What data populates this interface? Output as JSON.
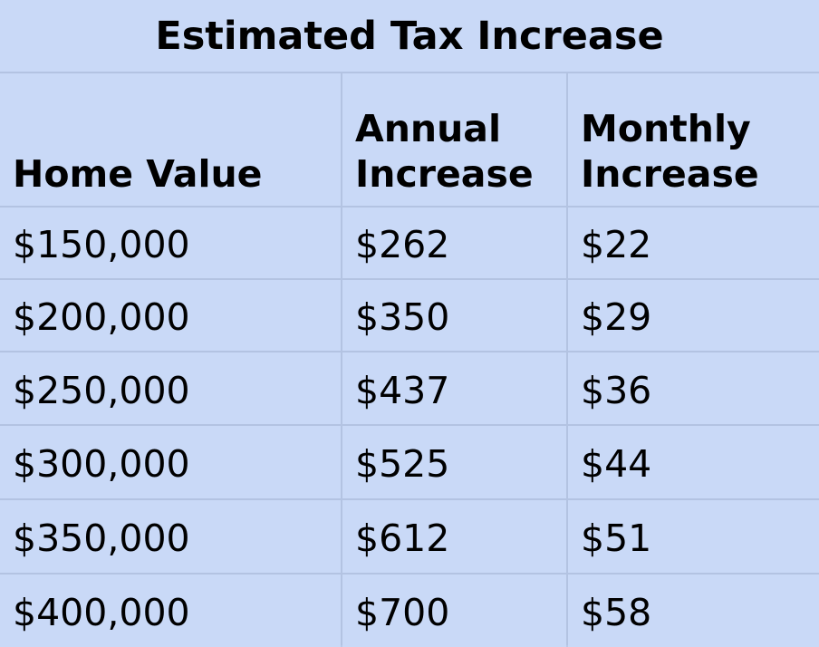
{
  "title": "Estimated Tax Increase",
  "headers": {
    "home_value": "Home Value",
    "annual": [
      "Annual",
      "Increase"
    ],
    "monthly": [
      "Monthly",
      "Increase"
    ]
  },
  "rows": [
    {
      "home_value": "$150,000",
      "annual": "$262",
      "monthly": "$22"
    },
    {
      "home_value": "$200,000",
      "annual": "$350",
      "monthly": "$29"
    },
    {
      "home_value": "$250,000",
      "annual": "$437",
      "monthly": "$36"
    },
    {
      "home_value": "$300,000",
      "annual": "$525",
      "monthly": "$44"
    },
    {
      "home_value": "$350,000",
      "annual": "$612",
      "monthly": "$51"
    },
    {
      "home_value": "$400,000",
      "annual": "$700",
      "monthly": "$58"
    }
  ],
  "colors": {
    "cell_background": "#c9d9f7",
    "grid_lines": "#b3c3e2",
    "text": "#000000"
  }
}
